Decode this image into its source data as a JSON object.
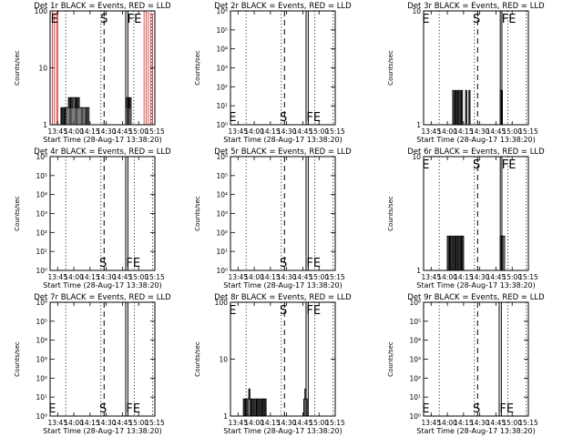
{
  "page": {
    "background": "#ffffff",
    "foreground": "#000000",
    "accent_lld": "#cc0000"
  },
  "time_ticks": [
    "13:45",
    "14:00",
    "14:15",
    "14:30",
    "14:45",
    "15:00",
    "15:15"
  ],
  "xlabel": "Start Time (28-Aug-17 13:38:20)",
  "ylabel": "Counts/sec",
  "chart_data": [
    {
      "type": "line",
      "title": "Det 1r BLACK = Events, RED = LLD",
      "x_range_minutes_after_1345": [
        -7,
        90
      ],
      "ylim": [
        1,
        100
      ],
      "y_scale": "log",
      "y_tick_labels": [
        "1",
        "10",
        "100"
      ],
      "markers": [
        {
          "text": "E",
          "t": -3,
          "position": "top"
        },
        {
          "text": "S",
          "t": 43,
          "position": "top"
        },
        {
          "text": "FE",
          "t": 71,
          "position": "top"
        }
      ],
      "dotted_times": [
        7.5,
        40,
        70.5,
        87
      ],
      "dashed_times": [
        43
      ],
      "solid_times": [
        63,
        65
      ],
      "series": [
        {
          "name": "Events",
          "color": "#000000",
          "x_minutes": [
            2,
            3,
            4,
            5,
            6,
            7,
            8,
            9,
            10,
            11,
            12,
            13,
            14,
            15,
            16,
            17,
            18,
            19,
            20,
            21,
            22,
            23,
            24,
            25,
            26,
            27,
            28,
            29,
            30,
            62,
            63,
            64,
            65,
            66,
            67,
            68
          ],
          "values": [
            1,
            2,
            1,
            2,
            1,
            2,
            2,
            2,
            3,
            2,
            3,
            2,
            3,
            3,
            2,
            3,
            2,
            3,
            2,
            2,
            2,
            2,
            2,
            2,
            1,
            2,
            2,
            1,
            1,
            1,
            2,
            3,
            3,
            2,
            3,
            1
          ]
        },
        {
          "name": "LLD",
          "color": "#cc0000",
          "x_minutes": [
            -7,
            -5,
            -3,
            -1,
            0,
            80,
            82,
            84,
            86,
            88
          ],
          "values": [
            90,
            95,
            90,
            95,
            98,
            98,
            95,
            92,
            90,
            88
          ]
        }
      ]
    },
    {
      "type": "line",
      "title": "Det 2r BLACK = Events, RED = LLD",
      "x_range_minutes_after_1345": [
        -7,
        90
      ],
      "ylim": [
        1,
        1000000
      ],
      "y_scale": "log",
      "y_tick_labels": [
        "10⁰",
        "10¹",
        "10²",
        "10³",
        "10⁴",
        "10⁵",
        "10⁶"
      ],
      "markers": [
        {
          "text": "E",
          "t": -5,
          "position": "bottom"
        },
        {
          "text": "S",
          "t": 42,
          "position": "bottom"
        },
        {
          "text": "FE",
          "t": 70,
          "position": "bottom"
        }
      ],
      "dotted_times": [
        7.5,
        40,
        71,
        88
      ],
      "dashed_times": [
        43
      ],
      "solid_times": [
        63,
        65
      ],
      "series": []
    },
    {
      "type": "line",
      "title": "Det 3r BLACK = Events, RED = LLD",
      "x_range_minutes_after_1345": [
        -7,
        90
      ],
      "ylim": [
        1,
        10
      ],
      "y_scale": "log",
      "y_tick_labels": [
        "1",
        "10"
      ],
      "markers": [
        {
          "text": "E",
          "t": -5,
          "position": "top"
        },
        {
          "text": "S",
          "t": 42,
          "position": "top"
        },
        {
          "text": "FE",
          "t": 72,
          "position": "top"
        }
      ],
      "dotted_times": [
        7.5,
        40,
        71,
        88
      ],
      "dashed_times": [
        43
      ],
      "solid_times": [
        64,
        65.5
      ],
      "series": [
        {
          "name": "Events",
          "color": "#000000",
          "x_minutes": [
            19,
            20,
            21,
            22,
            23,
            24,
            25,
            26,
            27,
            28,
            29,
            30,
            31,
            32,
            33,
            34,
            35,
            36,
            63,
            64,
            65,
            66
          ],
          "values": [
            1,
            2,
            1,
            2,
            1,
            2,
            1,
            2,
            1,
            2,
            1,
            1,
            1,
            2,
            1,
            1,
            2,
            1,
            1,
            2,
            2,
            1
          ]
        }
      ]
    },
    {
      "type": "line",
      "title": "Det 4r BLACK = Events, RED = LLD",
      "x_range_minutes_after_1345": [
        -7,
        90
      ],
      "ylim": [
        1,
        1000000
      ],
      "y_scale": "log",
      "y_tick_labels": [
        "10⁰",
        "10¹",
        "10²",
        "10³",
        "10⁴",
        "10⁵",
        "10⁶"
      ],
      "markers": [
        {
          "text": "S",
          "t": 42,
          "position": "bottom"
        },
        {
          "text": "FE",
          "t": 70,
          "position": "bottom"
        }
      ],
      "dotted_times": [
        7.5,
        40,
        71,
        88
      ],
      "dashed_times": [
        43
      ],
      "solid_times": [
        63,
        65
      ],
      "series": []
    },
    {
      "type": "line",
      "title": "Det 5r BLACK = Events, RED = LLD",
      "x_range_minutes_after_1345": [
        -7,
        90
      ],
      "ylim": [
        1,
        1000000
      ],
      "y_scale": "log",
      "y_tick_labels": [
        "10⁰",
        "10¹",
        "10²",
        "10³",
        "10⁴",
        "10⁵",
        "10⁶"
      ],
      "markers": [
        {
          "text": "S",
          "t": 42,
          "position": "bottom"
        },
        {
          "text": "FE",
          "t": 70,
          "position": "bottom"
        }
      ],
      "dotted_times": [
        7.5,
        40,
        71,
        88
      ],
      "dashed_times": [
        43
      ],
      "solid_times": [
        63,
        65
      ],
      "series": []
    },
    {
      "type": "line",
      "title": "Det 6r BLACK = Events, RED = LLD",
      "x_range_minutes_after_1345": [
        -7,
        90
      ],
      "ylim": [
        1,
        10
      ],
      "y_scale": "log",
      "y_tick_labels": [
        "1",
        "10"
      ],
      "markers": [
        {
          "text": "E",
          "t": -5,
          "position": "top"
        },
        {
          "text": "S",
          "t": 42,
          "position": "top"
        },
        {
          "text": "FE",
          "t": 72,
          "position": "top"
        }
      ],
      "dotted_times": [
        7.5,
        40,
        71,
        88
      ],
      "dashed_times": [
        43
      ],
      "solid_times": [
        64,
        65.5
      ],
      "series": [
        {
          "name": "Events",
          "color": "#000000",
          "x_minutes": [
            14,
            15,
            16,
            17,
            18,
            19,
            20,
            21,
            22,
            23,
            24,
            25,
            26,
            27,
            28,
            29,
            30,
            31,
            63,
            64,
            65,
            66,
            67,
            68
          ],
          "values": [
            1,
            2,
            1,
            2,
            1,
            2,
            1,
            2,
            1,
            2,
            1,
            2,
            1,
            2,
            1,
            2,
            1,
            1,
            1,
            2,
            2,
            2,
            2,
            1
          ]
        }
      ]
    },
    {
      "type": "line",
      "title": "Det 7r BLACK = Events, RED = LLD",
      "x_range_minutes_after_1345": [
        -7,
        90
      ],
      "ylim": [
        1,
        1000000
      ],
      "y_scale": "log",
      "y_tick_labels": [
        "10⁰",
        "10¹",
        "10²",
        "10³",
        "10⁴",
        "10⁵",
        "10⁶"
      ],
      "markers": [
        {
          "text": "E",
          "t": -5,
          "position": "bottom"
        },
        {
          "text": "S",
          "t": 42,
          "position": "bottom"
        },
        {
          "text": "FE",
          "t": 70,
          "position": "bottom"
        }
      ],
      "dotted_times": [
        7.5,
        40,
        71,
        88
      ],
      "dashed_times": [
        43
      ],
      "solid_times": [
        63,
        65
      ],
      "series": []
    },
    {
      "type": "line",
      "title": "Det 8r BLACK = Events, RED = LLD",
      "x_range_minutes_after_1345": [
        -7,
        90
      ],
      "ylim": [
        1,
        100
      ],
      "y_scale": "log",
      "y_tick_labels": [
        "1",
        "10",
        "100"
      ],
      "markers": [
        {
          "text": "E",
          "t": -5,
          "position": "top"
        },
        {
          "text": "S",
          "t": 42,
          "position": "top"
        },
        {
          "text": "FE",
          "t": 70,
          "position": "top"
        }
      ],
      "dotted_times": [
        7.5,
        40,
        71,
        88
      ],
      "dashed_times": [
        43
      ],
      "solid_times": [
        63,
        65
      ],
      "series": [
        {
          "name": "Events",
          "color": "#000000",
          "x_minutes": [
            4,
            5,
            6,
            7,
            8,
            9,
            10,
            11,
            12,
            13,
            14,
            15,
            16,
            17,
            18,
            19,
            20,
            21,
            22,
            23,
            24,
            25,
            26,
            60,
            61,
            62,
            63,
            64,
            65
          ],
          "values": [
            1,
            2,
            1,
            2,
            1,
            2,
            3,
            2,
            1,
            2,
            1,
            2,
            1,
            2,
            1,
            2,
            1,
            2,
            1,
            2,
            1,
            2,
            1,
            1,
            2,
            3,
            2,
            1,
            1
          ]
        }
      ]
    },
    {
      "type": "line",
      "title": "Det 9r BLACK = Events, RED = LLD",
      "x_range_minutes_after_1345": [
        -7,
        90
      ],
      "ylim": [
        1,
        1000000
      ],
      "y_scale": "log",
      "y_tick_labels": [
        "10⁰",
        "10¹",
        "10²",
        "10³",
        "10⁴",
        "10⁵",
        "10⁶"
      ],
      "markers": [
        {
          "text": "E",
          "t": -5,
          "position": "bottom"
        },
        {
          "text": "S",
          "t": 42,
          "position": "bottom"
        },
        {
          "text": "FE",
          "t": 70,
          "position": "bottom"
        }
      ],
      "dotted_times": [
        7.5,
        40,
        71,
        88
      ],
      "dashed_times": [
        43
      ],
      "solid_times": [
        63,
        65
      ],
      "series": []
    }
  ]
}
